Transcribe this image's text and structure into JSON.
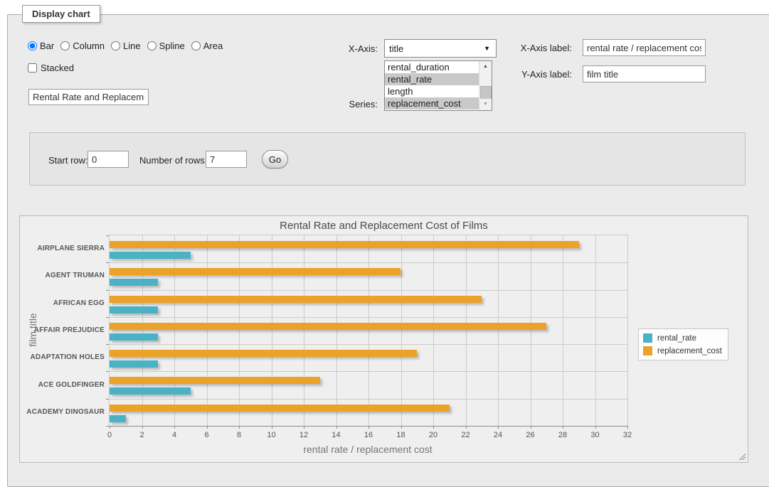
{
  "display_chart": {
    "legend": "Display chart",
    "chart_type_options": [
      "Bar",
      "Column",
      "Line",
      "Spline",
      "Area"
    ],
    "chart_type_selected": "Bar",
    "stacked_label": "Stacked",
    "stacked_checked": false,
    "title_value": "Rental Rate and Replacement Cost of Films",
    "x_axis_field_label": "X-Axis:",
    "x_axis_selected": "title",
    "series_field_label": "Series:",
    "series_options": [
      {
        "label": "rental_duration",
        "selected": false
      },
      {
        "label": "rental_rate",
        "selected": true
      },
      {
        "label": "length",
        "selected": false
      },
      {
        "label": "replacement_cost",
        "selected": true
      }
    ],
    "x_axis_label_field": {
      "label": "X-Axis label:",
      "value": "rental rate / replacement cost"
    },
    "y_axis_label_field": {
      "label": "Y-Axis label:",
      "value": "film title"
    }
  },
  "row_controls": {
    "start_row_label": "Start row:",
    "start_row_value": "0",
    "num_rows_label": "Number of rows:",
    "num_rows_value": "7",
    "go_label": "Go"
  },
  "chart_data": {
    "type": "bar",
    "orientation": "horizontal",
    "title": "Rental Rate and Replacement Cost of Films",
    "xlabel": "rental rate / replacement cost",
    "ylabel": "film title",
    "categories": [
      "AIRPLANE SIERRA",
      "AGENT TRUMAN",
      "AFRICAN EGG",
      "AFFAIR PREJUDICE",
      "ADAPTATION HOLES",
      "ACE GOLDFINGER",
      "ACADEMY DINOSAUR"
    ],
    "series": [
      {
        "name": "rental_rate",
        "color": "#4bb2c5",
        "values": [
          4.99,
          2.99,
          2.99,
          2.99,
          2.99,
          4.99,
          0.99
        ]
      },
      {
        "name": "replacement_cost",
        "color": "#eaa228",
        "values": [
          28.99,
          17.99,
          22.99,
          26.99,
          18.99,
          12.99,
          20.99
        ]
      }
    ],
    "xlim": [
      0,
      32
    ],
    "xtick_step": 2,
    "grid": true,
    "legend_position": "right"
  }
}
